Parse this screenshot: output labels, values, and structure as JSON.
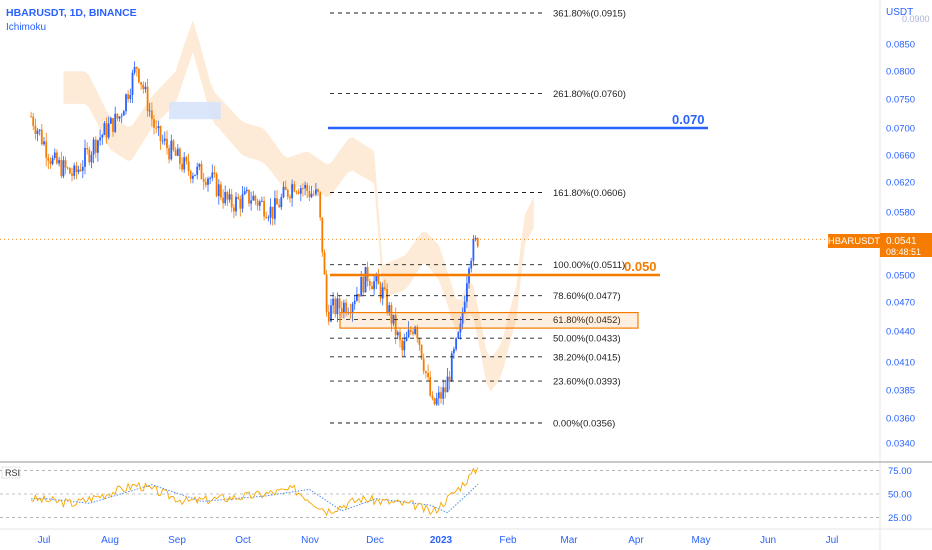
{
  "header": {
    "symbol_line": "HBARUSDT, 1D, BINANCE",
    "indicator": "Ichimoku"
  },
  "price_axis": {
    "currency": "USDT",
    "ticks": [
      "0.0850",
      "0.0800",
      "0.0750",
      "0.0700",
      "0.0660",
      "0.0620",
      "0.0580",
      "0.0530",
      "0.0500",
      "0.0470",
      "0.0440",
      "0.0410",
      "0.0385",
      "0.0360",
      "0.0340"
    ],
    "top_tick_partial": "0.0900"
  },
  "current_price": {
    "symbol_label": "HBARUSDT",
    "price": "0.0541",
    "countdown": "08:48:51",
    "value": 0.0541
  },
  "fib_levels": [
    {
      "label": "361.80%(0.0915)",
      "value": 0.0915
    },
    {
      "label": "261.80%(0.0760)",
      "value": 0.076
    },
    {
      "label": "161.80%(0.0606)",
      "value": 0.0606
    },
    {
      "label": "100.00%(0.0511)",
      "value": 0.0511
    },
    {
      "label": "78.60%(0.0477)",
      "value": 0.0477
    },
    {
      "label": "61.80%(0.0452)",
      "value": 0.0452
    },
    {
      "label": "50.00%(0.0433)",
      "value": 0.0433
    },
    {
      "label": "38.20%(0.0415)",
      "value": 0.0415
    },
    {
      "label": "23.60%(0.0393)",
      "value": 0.0393
    },
    {
      "label": "0.00%(0.0356)",
      "value": 0.0356
    }
  ],
  "annotations": {
    "target_high": {
      "label": "0.070",
      "value": 0.07,
      "color": "#2962ff"
    },
    "target_mid": {
      "label": "0.050",
      "value": 0.05,
      "color": "#f57c00"
    }
  },
  "time_axis": {
    "labels": [
      "Jul",
      "Aug",
      "Sep",
      "Oct",
      "Nov",
      "Dec",
      "2023",
      "Feb",
      "Mar",
      "Apr",
      "May",
      "Jun",
      "Jul"
    ]
  },
  "rsi": {
    "label": "RSI",
    "ticks": [
      "75.00",
      "50.00",
      "25.00"
    ]
  },
  "colors": {
    "up": "#2962ff",
    "down": "#f57c00",
    "cloud": "#fde8d0",
    "cloud_bull": "#d7e3fb",
    "fib_line": "#1f1f1f",
    "rsi_line": "#f7a600",
    "rsi_ma": "#4f8ef0"
  },
  "chart_data": {
    "type": "candlestick",
    "title": "HBARUSDT, 1D, BINANCE",
    "ylabel": "USDT",
    "ylim": [
      0.033,
      0.0915
    ],
    "price_path": [
      [
        "2022-06-25",
        0.072
      ],
      [
        "2022-07-05",
        0.065
      ],
      [
        "2022-07-15",
        0.063
      ],
      [
        "2022-07-25",
        0.068
      ],
      [
        "2022-08-05",
        0.072
      ],
      [
        "2022-08-13",
        0.081
      ],
      [
        "2022-08-22",
        0.069
      ],
      [
        "2022-09-05",
        0.064
      ],
      [
        "2022-09-15",
        0.063
      ],
      [
        "2022-09-25",
        0.059
      ],
      [
        "2022-10-05",
        0.06
      ],
      [
        "2022-10-15",
        0.058
      ],
      [
        "2022-10-25",
        0.062
      ],
      [
        "2022-11-05",
        0.06
      ],
      [
        "2022-11-09",
        0.046
      ],
      [
        "2022-11-20",
        0.047
      ],
      [
        "2022-11-28",
        0.05
      ],
      [
        "2022-12-05",
        0.048
      ],
      [
        "2022-12-14",
        0.042
      ],
      [
        "2022-12-20",
        0.045
      ],
      [
        "2022-12-28",
        0.037
      ],
      [
        "2023-01-03",
        0.0385
      ],
      [
        "2023-01-10",
        0.044
      ],
      [
        "2023-01-14",
        0.052
      ],
      [
        "2023-01-18",
        0.0541
      ]
    ],
    "rsi_path": [
      [
        "2022-06-25",
        45
      ],
      [
        "2022-07-15",
        40
      ],
      [
        "2022-08-13",
        60
      ],
      [
        "2022-09-05",
        42
      ],
      [
        "2022-10-05",
        48
      ],
      [
        "2022-10-25",
        55
      ],
      [
        "2022-11-09",
        32
      ],
      [
        "2022-11-25",
        45
      ],
      [
        "2022-12-20",
        38
      ],
      [
        "2022-12-28",
        30
      ],
      [
        "2023-01-10",
        58
      ],
      [
        "2023-01-18",
        78
      ]
    ]
  }
}
